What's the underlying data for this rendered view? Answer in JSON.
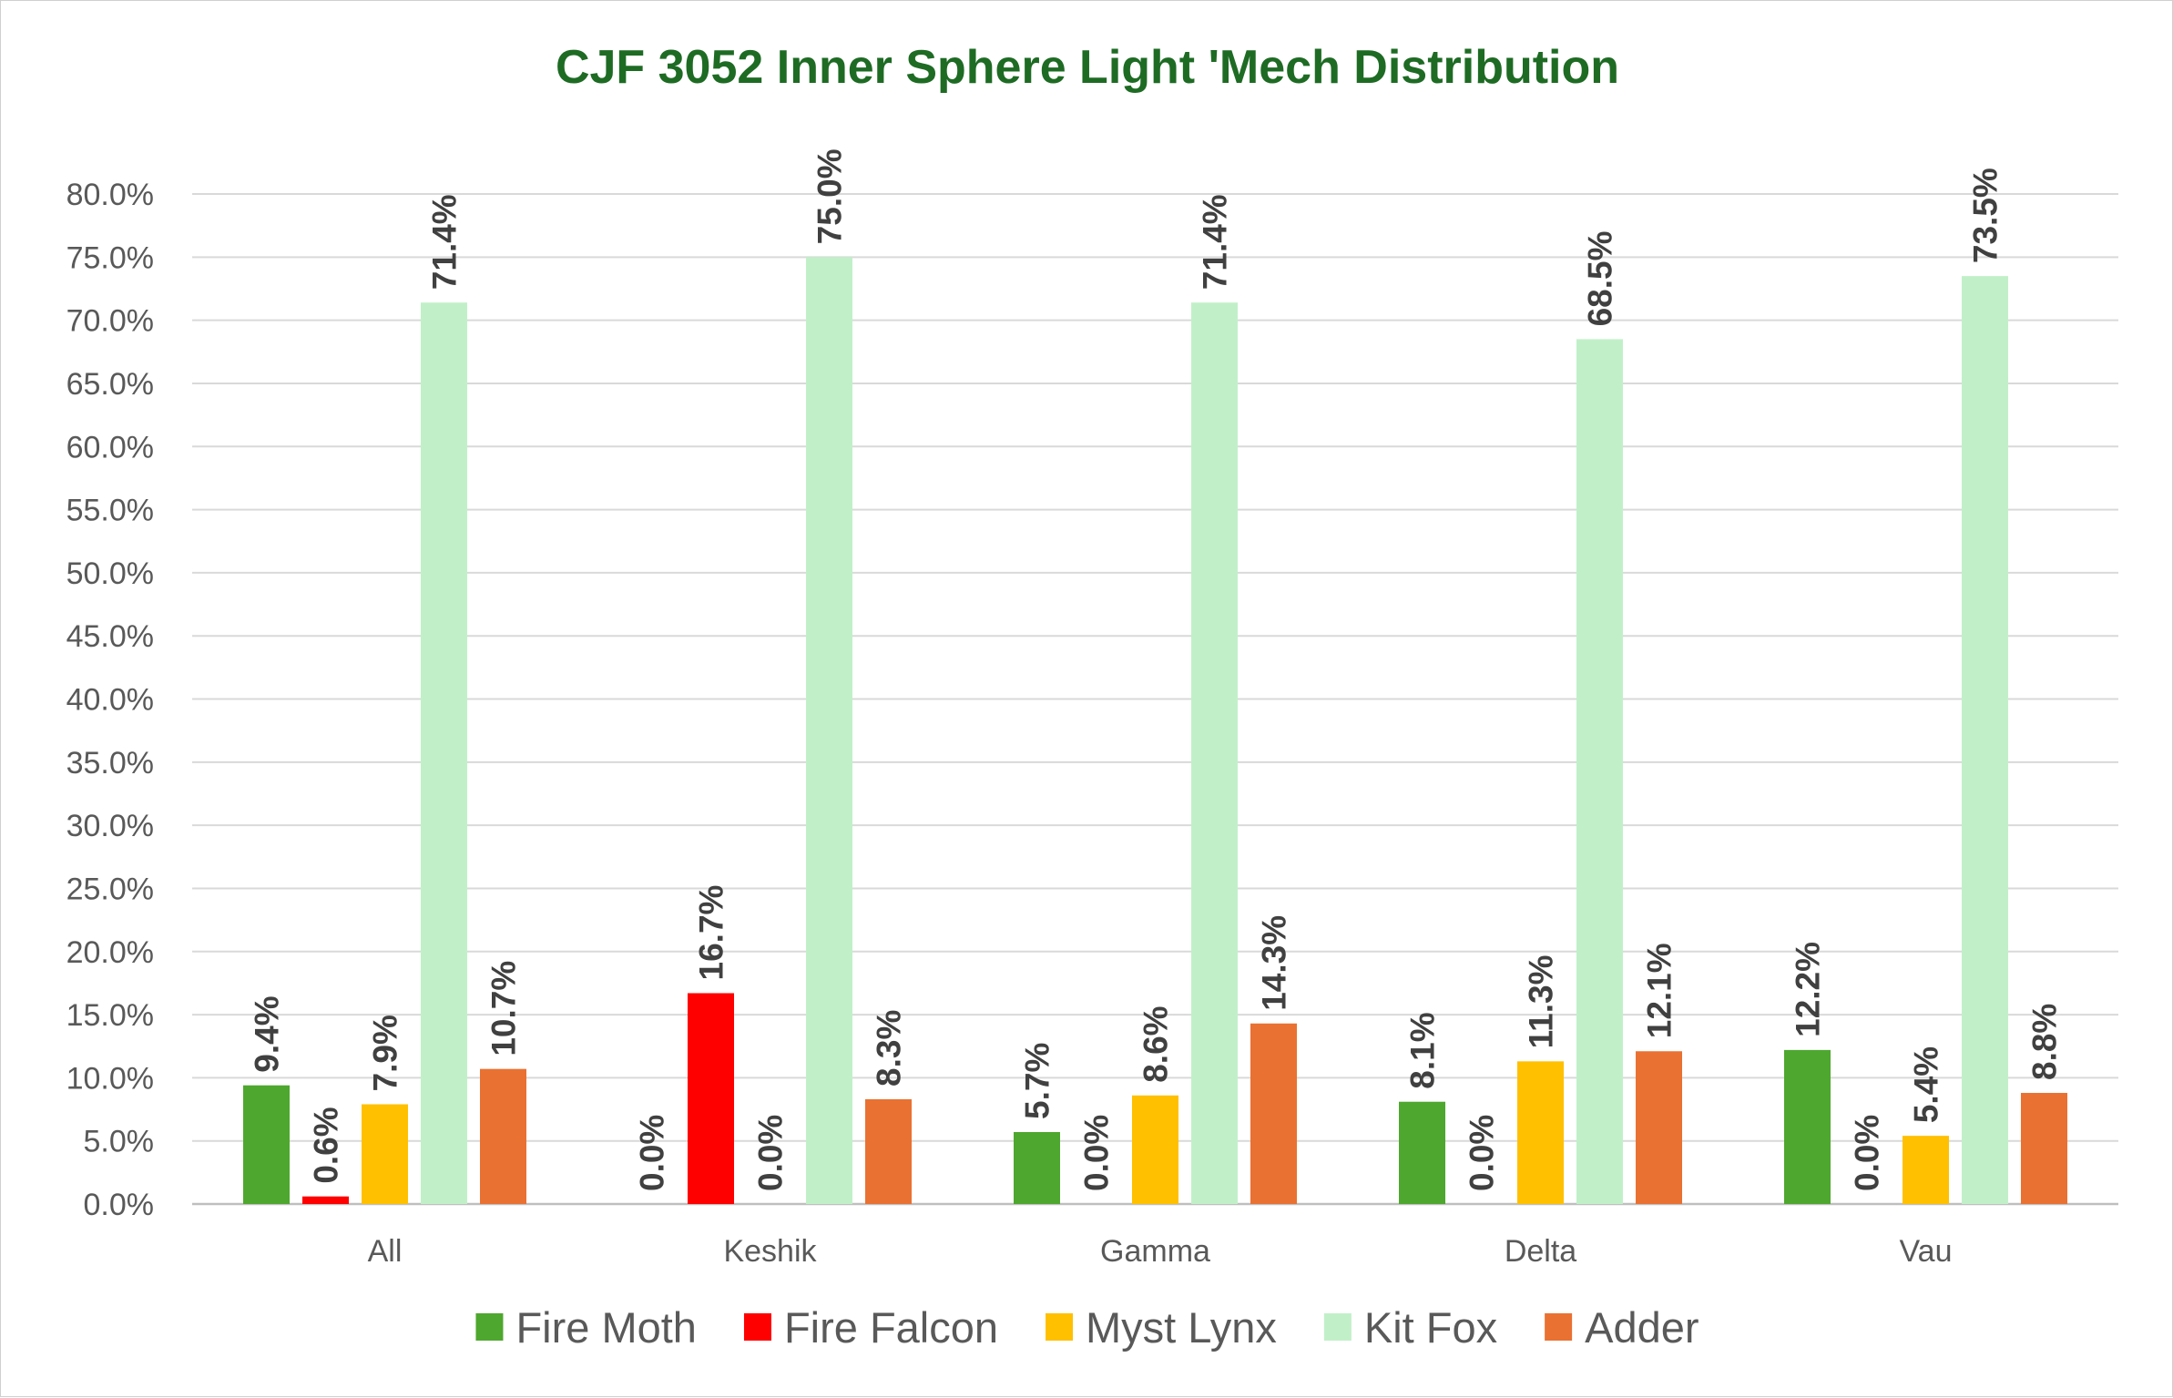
{
  "chart_data": {
    "type": "bar",
    "title": "CJF 3052 Inner Sphere Light 'Mech Distribution",
    "title_color": "#1e6b24",
    "xlabel": "",
    "ylabel": "",
    "ylim": [
      0,
      80
    ],
    "y_ticks": [
      "0.0%",
      "5.0%",
      "10.0%",
      "15.0%",
      "20.0%",
      "25.0%",
      "30.0%",
      "35.0%",
      "40.0%",
      "45.0%",
      "50.0%",
      "55.0%",
      "60.0%",
      "65.0%",
      "70.0%",
      "75.0%",
      "80.0%"
    ],
    "grid": true,
    "legend_position": "bottom",
    "categories": [
      "All",
      "Keshik",
      "Gamma",
      "Delta",
      "Vau"
    ],
    "series": [
      {
        "name": "Fire Moth",
        "color": "#4ea72e",
        "values": [
          9.4,
          0.0,
          5.7,
          8.1,
          12.2
        ],
        "labels": [
          "9.4%",
          "0.0%",
          "5.7%",
          "8.1%",
          "12.2%"
        ]
      },
      {
        "name": "Fire Falcon",
        "color": "#ff0000",
        "values": [
          0.6,
          16.7,
          0.0,
          0.0,
          0.0
        ],
        "labels": [
          "0.6%",
          "16.7%",
          "0.0%",
          "0.0%",
          "0.0%"
        ]
      },
      {
        "name": "Myst Lynx",
        "color": "#ffc000",
        "values": [
          7.9,
          0.0,
          8.6,
          11.3,
          5.4
        ],
        "labels": [
          "7.9%",
          "0.0%",
          "8.6%",
          "11.3%",
          "5.4%"
        ]
      },
      {
        "name": "Kit Fox",
        "color": "#c1f0c8",
        "values": [
          71.4,
          75.0,
          71.4,
          68.5,
          73.5
        ],
        "labels": [
          "71.4%",
          "75.0%",
          "71.4%",
          "68.5%",
          "73.5%"
        ]
      },
      {
        "name": "Adder",
        "color": "#e97132",
        "values": [
          10.7,
          8.3,
          14.3,
          12.1,
          8.8
        ],
        "labels": [
          "10.7%",
          "8.3%",
          "14.3%",
          "12.1%",
          "8.8%"
        ]
      }
    ]
  }
}
